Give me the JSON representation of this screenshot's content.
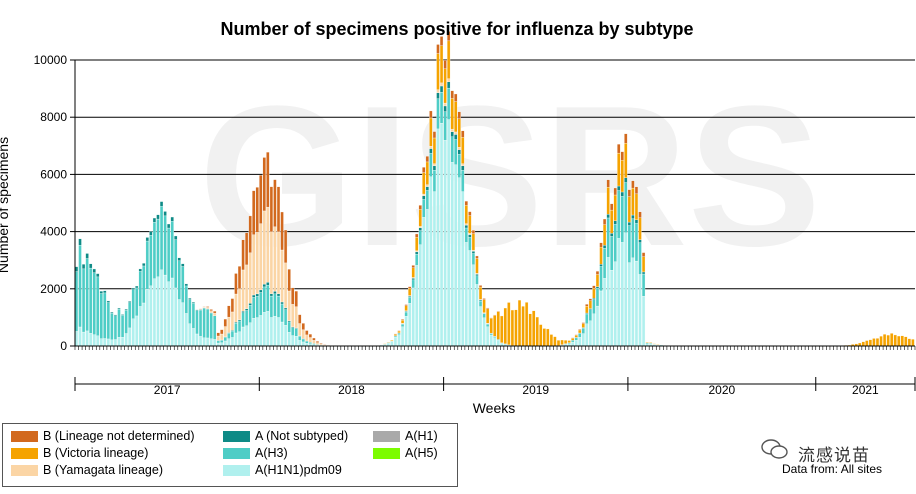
{
  "chart_data": {
    "type": "bar",
    "stacked": true,
    "title": "Number of specimens positive for influenza by subtype",
    "xlabel": "Weeks",
    "ylabel": "Number of specimens",
    "ylim": [
      0,
      10000
    ],
    "yticks": [
      0,
      2000,
      4000,
      6000,
      8000,
      10000
    ],
    "grid": true,
    "background_watermark": "GISRS",
    "years": [
      {
        "label": "2017",
        "start_week": 0,
        "end_week": 52
      },
      {
        "label": "2018",
        "start_week": 52,
        "end_week": 104
      },
      {
        "label": "2019",
        "start_week": 104,
        "end_week": 156
      },
      {
        "label": "2020",
        "start_week": 156,
        "end_week": 209
      },
      {
        "label": "2021",
        "start_week": 209,
        "end_week": 237
      }
    ],
    "series": [
      {
        "name": "A(H1N1)pdm09",
        "color": "#b0f0ee",
        "peaks": [
          [
            0,
            600
          ],
          [
            24,
            2400
          ],
          [
            53,
            1200
          ],
          [
            104,
            7200
          ],
          [
            154,
            3600
          ],
          [
            230,
            0
          ]
        ]
      },
      {
        "name": "A(H3)",
        "color": "#4ecdc6",
        "peaks": [
          [
            0,
            1800
          ],
          [
            5,
            1000
          ],
          [
            24,
            2000
          ],
          [
            53,
            900
          ],
          [
            104,
            1000
          ],
          [
            154,
            1600
          ]
        ]
      },
      {
        "name": "A(Not subtyped)",
        "color": "#0e8a86",
        "peaks": [
          [
            0,
            200
          ],
          [
            24,
            150
          ],
          [
            53,
            100
          ],
          [
            104,
            200
          ],
          [
            154,
            150
          ]
        ]
      },
      {
        "name": "B (Yamagata lineage)",
        "color": "#fbd5a5",
        "peaks": [
          [
            53,
            2600
          ],
          [
            104,
            100
          ],
          [
            115,
            0
          ]
        ]
      },
      {
        "name": "B (Victoria lineage)",
        "color": "#f5a300",
        "peaks": [
          [
            104,
            1200
          ],
          [
            125,
            1500
          ],
          [
            154,
            1100
          ],
          [
            230,
            400
          ]
        ]
      },
      {
        "name": "B (Lineage not determined)",
        "color": "#d2691e",
        "peaks": [
          [
            53,
            1900
          ],
          [
            104,
            300
          ],
          [
            154,
            300
          ]
        ]
      },
      {
        "name": "A(H1)",
        "color": "#a9a9a9",
        "peaks": []
      },
      {
        "name": "A(H5)",
        "color": "#7cfc00",
        "peaks": []
      }
    ],
    "totals_approx": {
      "2017-peak": 3800,
      "2018-peak": 7800,
      "2019-peak-A": 8400,
      "2019-peak-B": 4500,
      "2020-peak": 7100,
      "2021-peak": 450
    }
  },
  "legend": {
    "items": [
      {
        "label": "B (Lineage not determined)",
        "color": "#d2691e"
      },
      {
        "label": "A (Not subtyped)",
        "color": "#0e8a86"
      },
      {
        "label": "A(H1)",
        "color": "#a9a9a9"
      },
      {
        "label": "B (Victoria lineage)",
        "color": "#f5a300"
      },
      {
        "label": "A(H3)",
        "color": "#4ecdc6"
      },
      {
        "label": "A(H5)",
        "color": "#7cfc00"
      },
      {
        "label": "B (Yamagata lineage)",
        "color": "#fbd5a5"
      },
      {
        "label": "A(H1N1)pdm09",
        "color": "#b0f0ee"
      }
    ]
  },
  "source": "Data from: All sites",
  "watermark": "流感说苗"
}
